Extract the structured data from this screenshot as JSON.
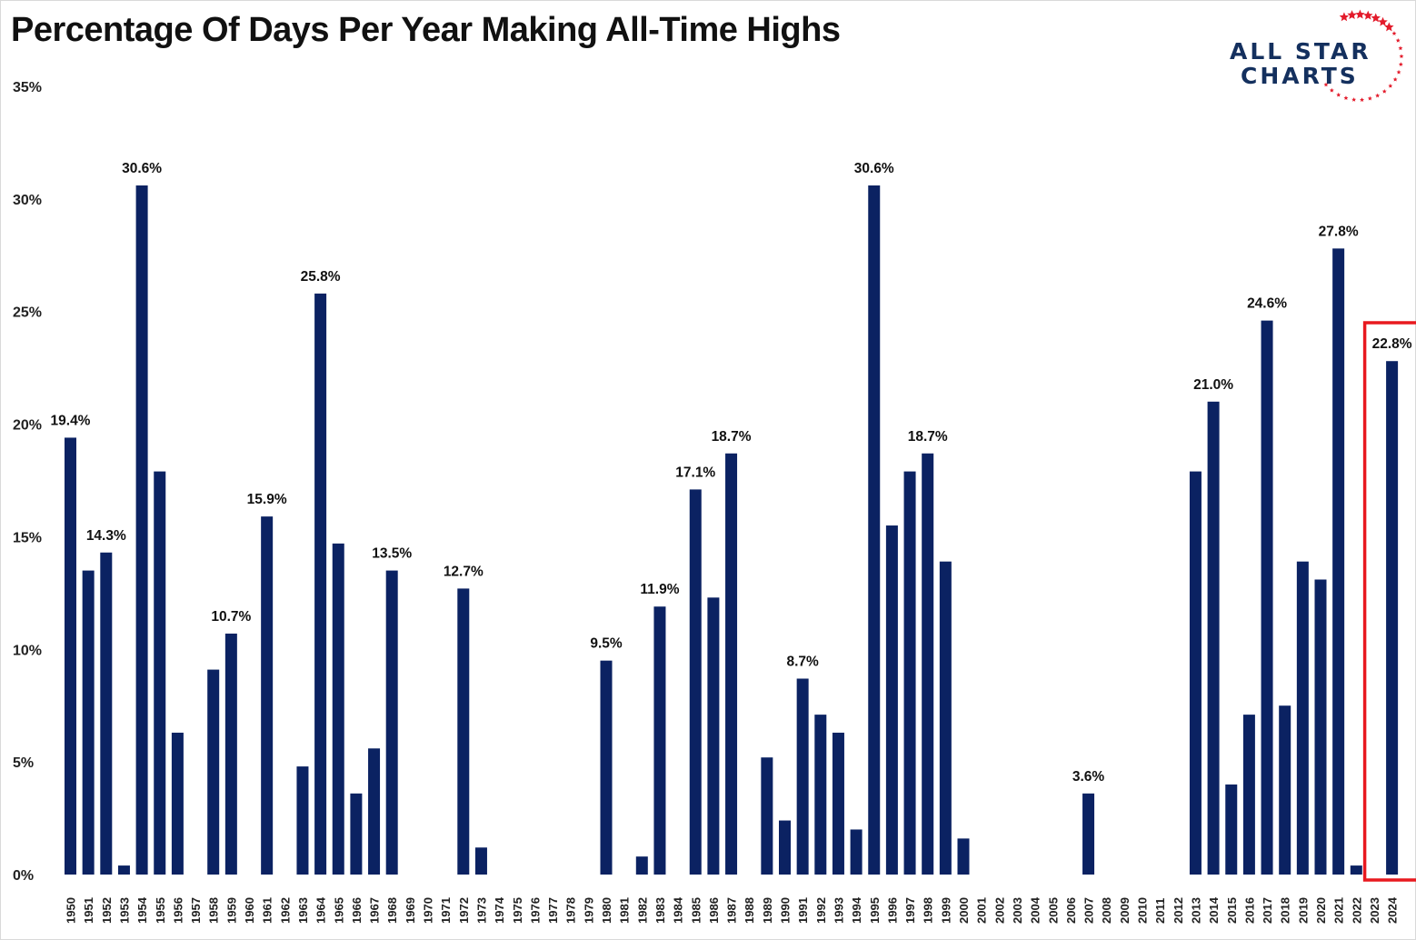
{
  "title": "Percentage Of Days Per Year Making All-Time Highs",
  "logo": {
    "line1": "ALL STAR",
    "line2": "CHARTS",
    "star_color": "#e31b2b",
    "text_color": "#14305e"
  },
  "colors": {
    "bar": "#0b2262",
    "highlight_box": "#e8191f"
  },
  "chart_data": {
    "type": "bar",
    "title": "Percentage Of Days Per Year Making All-Time Highs",
    "xlabel": "",
    "ylabel": "",
    "ylim": [
      0,
      35
    ],
    "yticks": [
      "0%",
      "5%",
      "10%",
      "15%",
      "20%",
      "25%",
      "30%",
      "35%"
    ],
    "grid": false,
    "highlight_category": "2024",
    "categories": [
      "1950",
      "1951",
      "1952",
      "1953",
      "1954",
      "1955",
      "1956",
      "1957",
      "1958",
      "1959",
      "1960",
      "1961",
      "1962",
      "1963",
      "1964",
      "1965",
      "1966",
      "1967",
      "1968",
      "1969",
      "1970",
      "1971",
      "1972",
      "1973",
      "1974",
      "1975",
      "1976",
      "1977",
      "1978",
      "1979",
      "1980",
      "1981",
      "1982",
      "1983",
      "1984",
      "1985",
      "1986",
      "1987",
      "1988",
      "1989",
      "1990",
      "1991",
      "1992",
      "1993",
      "1994",
      "1995",
      "1996",
      "1997",
      "1998",
      "1999",
      "2000",
      "2001",
      "2002",
      "2003",
      "2004",
      "2005",
      "2006",
      "2007",
      "2008",
      "2009",
      "2010",
      "2011",
      "2012",
      "2013",
      "2014",
      "2015",
      "2016",
      "2017",
      "2018",
      "2019",
      "2020",
      "2021",
      "2022",
      "2023",
      "2024"
    ],
    "values": [
      19.4,
      13.5,
      14.3,
      0.4,
      30.6,
      17.9,
      6.3,
      0,
      9.1,
      10.7,
      0,
      15.9,
      0,
      4.8,
      25.8,
      14.7,
      3.6,
      5.6,
      13.5,
      0,
      0,
      0,
      12.7,
      1.2,
      0,
      0,
      0,
      0,
      0,
      0,
      9.5,
      0,
      0.8,
      11.9,
      0,
      17.1,
      12.3,
      18.7,
      0,
      5.2,
      2.4,
      8.7,
      7.1,
      6.3,
      2.0,
      30.6,
      15.5,
      17.9,
      18.7,
      13.9,
      1.6,
      0,
      0,
      0,
      0,
      0,
      0,
      3.6,
      0,
      0,
      0,
      0,
      0,
      17.9,
      21.0,
      4.0,
      7.1,
      24.6,
      7.5,
      13.9,
      13.1,
      27.8,
      0.4,
      0,
      22.8
    ],
    "data_labels": {
      "1950": "19.4%",
      "1952": "14.3%",
      "1954": "30.6%",
      "1959": "10.7%",
      "1961": "15.9%",
      "1964": "25.8%",
      "1968": "13.5%",
      "1972": "12.7%",
      "1980": "9.5%",
      "1983": "11.9%",
      "1985": "17.1%",
      "1987": "18.7%",
      "1991": "8.7%",
      "1995": "30.6%",
      "1998": "18.7%",
      "2007": "3.6%",
      "2014": "21.0%",
      "2017": "24.6%",
      "2021": "27.8%",
      "2024": "22.8%"
    }
  }
}
